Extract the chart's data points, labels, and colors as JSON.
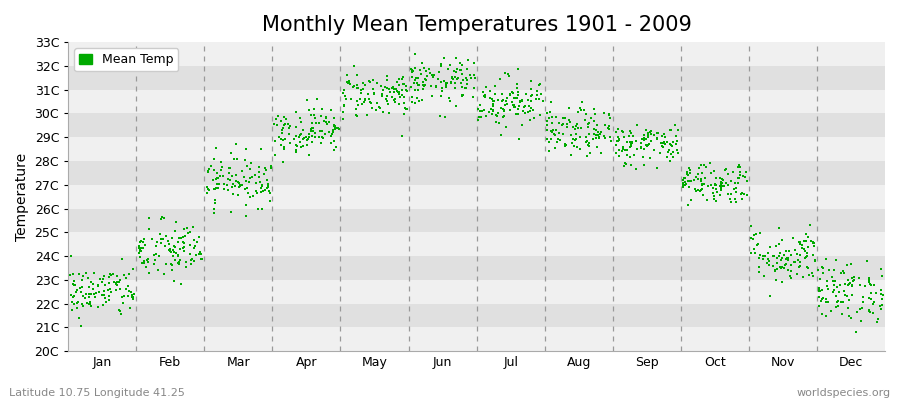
{
  "title": "Monthly Mean Temperatures 1901 - 2009",
  "ylabel": "Temperature",
  "xlabel_bottom_left": "Latitude 10.75 Longitude 41.25",
  "xlabel_bottom_right": "worldspecies.org",
  "legend_label": "Mean Temp",
  "ylim": [
    20,
    33
  ],
  "yticks": [
    20,
    21,
    22,
    23,
    24,
    25,
    26,
    27,
    28,
    29,
    30,
    31,
    32,
    33
  ],
  "ytick_labels": [
    "20C",
    "21C",
    "22C",
    "23C",
    "24C",
    "25C",
    "26C",
    "27C",
    "28C",
    "29C",
    "30C",
    "31C",
    "32C",
    "33C"
  ],
  "months": [
    "Jan",
    "Feb",
    "Mar",
    "Apr",
    "May",
    "Jun",
    "Jul",
    "Aug",
    "Sep",
    "Oct",
    "Nov",
    "Dec"
  ],
  "month_means": [
    22.5,
    24.2,
    27.2,
    29.3,
    30.8,
    31.3,
    30.5,
    29.2,
    28.7,
    27.1,
    24.0,
    22.5
  ],
  "month_stds": [
    0.55,
    0.65,
    0.55,
    0.5,
    0.5,
    0.5,
    0.55,
    0.5,
    0.45,
    0.45,
    0.6,
    0.65
  ],
  "n_years": 109,
  "scatter_color": "#00aa00",
  "scatter_size": 3,
  "bg_light": "#f0f0f0",
  "bg_dark": "#e0e0e0",
  "vline_color": "#999999",
  "title_fontsize": 15,
  "axis_fontsize": 10,
  "tick_fontsize": 9,
  "legend_fontsize": 9,
  "random_seed": 42
}
